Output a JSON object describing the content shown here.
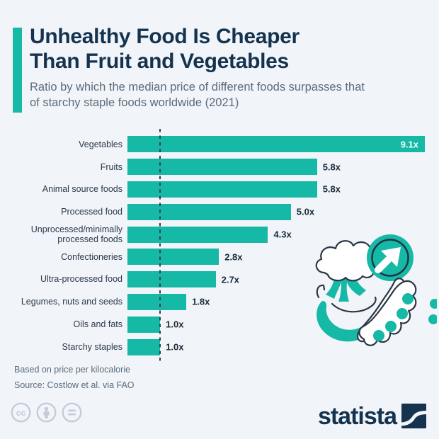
{
  "page": {
    "background": "#f1f4f9"
  },
  "colors": {
    "accent_teal": "#16b8a6",
    "navy": "#15334f",
    "text_gray": "#5b6c7b",
    "label_dark": "#2b3949",
    "license_gray": "#c3cbd8",
    "reference_line": "#31414f"
  },
  "header": {
    "title_line1": "Unhealthy Food Is Cheaper",
    "title_line2": "Than Fruit and Vegetables",
    "subtitle": "Ratio by which the median price of different foods surpasses that of starchy staple foods worldwide (2021)"
  },
  "chart_data": {
    "type": "bar",
    "orientation": "horizontal",
    "title": "Unhealthy Food Is Cheaper Than Fruit and Vegetables",
    "categories": [
      "Vegetables",
      "Fruits",
      "Animal source foods",
      "Processed food",
      "Unprocessed/minimally processed foods",
      "Confectioneries",
      "Ultra-processed food",
      "Legumes, nuts and seeds",
      "Oils and fats",
      "Starchy staples"
    ],
    "values": [
      9.1,
      5.8,
      5.8,
      5.0,
      4.3,
      2.8,
      2.7,
      1.8,
      1.0,
      1.0
    ],
    "value_labels": [
      "9.1x",
      "5.8x",
      "5.8x",
      "5.0x",
      "4.3x",
      "2.8x",
      "2.7x",
      "1.8x",
      "1.0x",
      "1.0x"
    ],
    "xlim": [
      0,
      9.1
    ],
    "reference_line": 1.0,
    "reference_line_style": "dashed",
    "bar_color": "#16b8a6",
    "grid": false,
    "legend": false
  },
  "footer": {
    "note": "Based on price per kilocalorie",
    "source": "Source: Costlow et al. via FAO"
  },
  "branding": {
    "logo_text": "statista"
  },
  "license": {
    "icons": [
      "cc-icon",
      "attribution-icon",
      "no-derivatives-icon"
    ]
  },
  "illustration": {
    "items": [
      "broccoli",
      "banana",
      "pea-pod",
      "trend-arrow-circle"
    ]
  }
}
